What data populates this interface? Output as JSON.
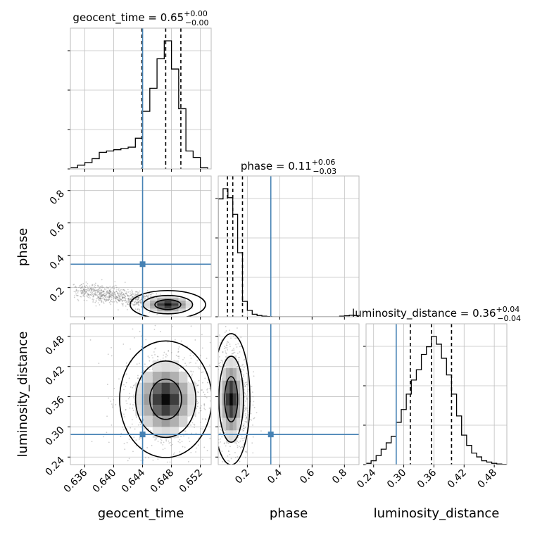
{
  "chart_data": {
    "type": "corner",
    "parameters": [
      "geocent_time",
      "phase",
      "luminosity_distance"
    ],
    "axis_labels": {
      "x": [
        "geocent_time",
        "phase",
        "luminosity_distance"
      ],
      "y": [
        "phase",
        "luminosity_distance"
      ]
    },
    "titles": [
      {
        "name": "geocent_time",
        "median": "0.65",
        "plus": "+0.00",
        "minus": "−0.00"
      },
      {
        "name": "phase",
        "median": "0.11",
        "plus": "+0.06",
        "minus": "−0.03"
      },
      {
        "name": "luminosity_distance",
        "median": "0.36",
        "plus": "+0.04",
        "minus": "−0.04"
      }
    ],
    "ranges": {
      "geocent_time": [
        0.634,
        0.6535
      ],
      "phase": [
        0.02,
        0.89
      ],
      "luminosity_distance": [
        0.225,
        0.505
      ]
    },
    "ticks": {
      "geocent_time": [
        0.636,
        0.64,
        0.644,
        0.648,
        0.652
      ],
      "geocent_time_labels": [
        "0.636",
        "0.640",
        "0.644",
        "0.648",
        "0.652"
      ],
      "phase": [
        0.2,
        0.4,
        0.6,
        0.8
      ],
      "phase_labels": [
        "0.2",
        "0.4",
        "0.6",
        "0.8"
      ],
      "luminosity_distance": [
        0.24,
        0.3,
        0.36,
        0.42,
        0.48
      ],
      "luminosity_distance_labels": [
        "0.24",
        "0.30",
        "0.36",
        "0.42",
        "0.48"
      ]
    },
    "truth": {
      "geocent_time": 0.644,
      "phase": 0.345,
      "luminosity_distance": 0.285
    },
    "quantiles": {
      "geocent_time": [
        0.6439,
        0.6472,
        0.6493
      ],
      "phase": [
        0.077,
        0.11,
        0.17
      ],
      "luminosity_distance": [
        0.313,
        0.355,
        0.395
      ]
    },
    "histograms": {
      "geocent_time": {
        "edges": [
          0.634,
          0.635,
          0.636,
          0.637,
          0.638,
          0.639,
          0.64,
          0.641,
          0.642,
          0.643,
          0.644,
          0.645,
          0.646,
          0.647,
          0.648,
          0.649,
          0.65,
          0.651,
          0.652,
          0.653
        ],
        "counts": [
          0.01,
          0.03,
          0.05,
          0.08,
          0.13,
          0.14,
          0.15,
          0.16,
          0.17,
          0.24,
          0.45,
          0.63,
          0.86,
          1.0,
          0.78,
          0.47,
          0.14,
          0.09,
          0.01
        ]
      },
      "phase": {
        "edges": [
          0.02,
          0.05,
          0.08,
          0.11,
          0.14,
          0.17,
          0.2,
          0.23,
          0.26,
          0.29,
          0.32,
          0.35,
          0.38,
          0.41,
          0.44,
          0.47,
          0.5,
          0.53,
          0.56,
          0.59,
          0.62,
          0.65,
          0.68,
          0.71,
          0.74,
          0.77,
          0.8,
          0.83,
          0.86,
          0.89
        ],
        "counts": [
          0.92,
          1.0,
          0.93,
          0.8,
          0.5,
          0.12,
          0.05,
          0.02,
          0.01,
          0.005,
          0.002,
          0.0,
          0.0,
          0.0,
          0.0,
          0.0,
          0.0,
          0.0,
          0.0,
          0.0,
          0.0,
          0.0,
          0.0,
          0.0,
          0.0,
          0.005,
          0.008,
          0.012,
          0.01
        ]
      },
      "luminosity_distance": {
        "edges": [
          0.225,
          0.235,
          0.245,
          0.255,
          0.265,
          0.275,
          0.285,
          0.295,
          0.305,
          0.315,
          0.325,
          0.335,
          0.345,
          0.355,
          0.365,
          0.375,
          0.385,
          0.395,
          0.405,
          0.415,
          0.425,
          0.435,
          0.445,
          0.455,
          0.465,
          0.475,
          0.485,
          0.495,
          0.505
        ],
        "counts": [
          0.01,
          0.03,
          0.07,
          0.12,
          0.17,
          0.22,
          0.33,
          0.43,
          0.55,
          0.66,
          0.74,
          0.86,
          0.92,
          1.0,
          0.94,
          0.83,
          0.7,
          0.55,
          0.38,
          0.23,
          0.15,
          0.09,
          0.06,
          0.03,
          0.02,
          0.01,
          0.005,
          0.002
        ]
      }
    },
    "density_peaks": [
      {
        "x": "geocent_time",
        "y": "phase",
        "center": [
          0.6475,
          0.095
        ],
        "spread": [
          0.0018,
          0.03
        ],
        "shape": "elongated toward low geocent_time"
      },
      {
        "x": "geocent_time",
        "y": "luminosity_distance",
        "center": [
          0.6472,
          0.355
        ],
        "spread": [
          0.0022,
          0.04
        ]
      },
      {
        "x": "phase",
        "y": "luminosity_distance",
        "center": [
          0.1,
          0.355
        ],
        "spread": [
          0.04,
          0.045
        ]
      }
    ],
    "colors": {
      "truth": "#4682b4",
      "hist": "#000000",
      "grid": "#c0c0c0",
      "samples": "#707070"
    },
    "grid": true
  }
}
